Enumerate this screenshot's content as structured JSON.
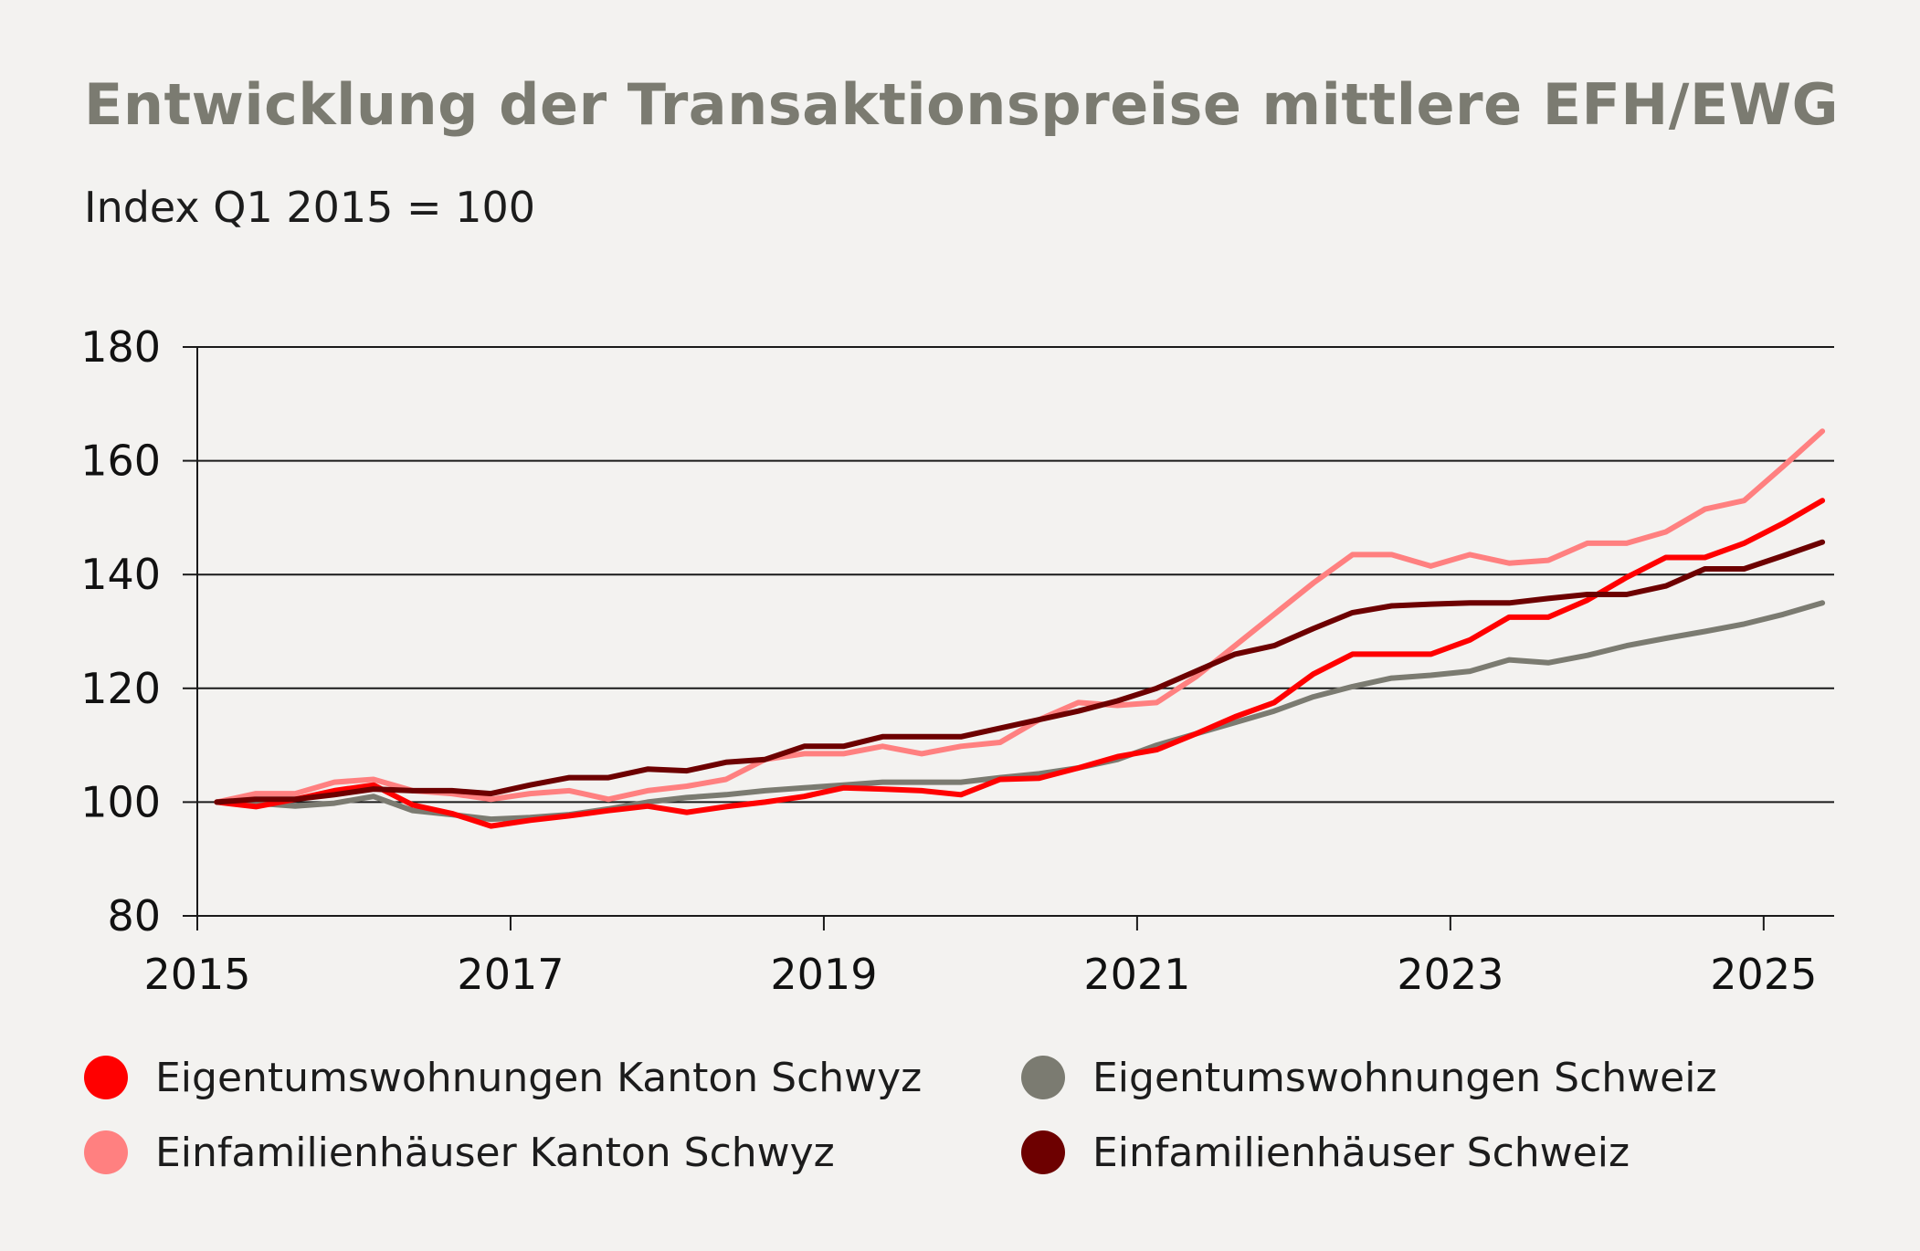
{
  "chart_data": {
    "type": "line",
    "title": "Entwicklung der Transaktionspreise mittlere EFH/EWG",
    "subtitle": "Index Q1 2015 = 100",
    "xlabel": "",
    "ylabel": "",
    "xlim": [
      2015.0,
      2025.45
    ],
    "ylim": [
      80,
      180
    ],
    "yticks": [
      "80",
      "100",
      "120",
      "140",
      "160",
      "180"
    ],
    "xticks": [
      "2015",
      "2017",
      "2019",
      "2021",
      "2023",
      "2025"
    ],
    "grid": "horizontal",
    "legend_position": "bottom",
    "x": [
      2015.125,
      2015.375,
      2015.625,
      2015.875,
      2016.125,
      2016.375,
      2016.625,
      2016.875,
      2017.125,
      2017.375,
      2017.625,
      2017.875,
      2018.125,
      2018.375,
      2018.625,
      2018.875,
      2019.125,
      2019.375,
      2019.625,
      2019.875,
      2020.125,
      2020.375,
      2020.625,
      2020.875,
      2021.125,
      2021.375,
      2021.625,
      2021.875,
      2022.125,
      2022.375,
      2022.625,
      2022.875,
      2023.125,
      2023.375,
      2023.625,
      2023.875,
      2024.125,
      2024.375,
      2024.625,
      2024.875,
      2025.125,
      2025.375
    ],
    "series": [
      {
        "name": "Eigentumswohnungen Kanton Schwyz",
        "color": "#ff0000",
        "values": [
          100,
          99.2,
          100.5,
          102,
          103,
          99.5,
          98,
          95.8,
          96.8,
          97.6,
          98.5,
          99.3,
          98.2,
          99.2,
          100,
          101,
          102.5,
          102.3,
          102,
          101.3,
          104,
          104.2,
          106,
          108,
          109.2,
          112,
          115,
          117.5,
          122.5,
          126,
          126,
          126,
          128.5,
          132.5,
          132.5,
          135.5,
          139.5,
          143,
          143,
          145.5,
          149,
          153
        ]
      },
      {
        "name": "Eigentumswohnungen Schweiz",
        "color": "#7b7b71",
        "values": [
          100,
          99.8,
          99.3,
          99.8,
          101,
          98.5,
          97.8,
          97,
          97.3,
          97.8,
          98.8,
          100,
          100.8,
          101.3,
          102,
          102.5,
          103,
          103.5,
          103.5,
          103.5,
          104.3,
          105,
          106,
          107.5,
          110,
          112,
          114,
          116,
          118.5,
          120.3,
          121.8,
          122.3,
          123,
          125,
          124.5,
          125.8,
          127.5,
          128.8,
          130,
          131.3,
          133,
          135
        ]
      },
      {
        "name": "Einfamilienhäuser Kanton Schwyz",
        "color": "#ff8080",
        "values": [
          100,
          101.5,
          101.5,
          103.5,
          104,
          102,
          101.5,
          100.5,
          101.5,
          102,
          100.5,
          102,
          102.8,
          104,
          107.5,
          108.5,
          108.5,
          109.8,
          108.5,
          109.8,
          110.5,
          114.5,
          117.5,
          117,
          117.5,
          122,
          127.5,
          133,
          138.5,
          143.5,
          143.5,
          141.5,
          143.5,
          142,
          142.5,
          145.5,
          145.5,
          147.5,
          151.5,
          153,
          159,
          165.2
        ]
      },
      {
        "name": "Einfamilienhäuser Schweiz",
        "color": "#6d0000",
        "values": [
          100,
          100.5,
          100.5,
          101.3,
          102.3,
          102,
          102,
          101.5,
          103,
          104.3,
          104.3,
          105.8,
          105.5,
          107,
          107.5,
          109.8,
          109.8,
          111.5,
          111.5,
          111.5,
          113,
          114.5,
          116,
          117.8,
          120,
          123,
          126,
          127.5,
          130.5,
          133.3,
          134.5,
          134.8,
          135,
          135,
          135.8,
          136.5,
          136.5,
          138,
          141,
          141,
          143.3,
          145.7
        ]
      }
    ]
  },
  "legend": {
    "items": [
      {
        "label": "Eigentumswohnungen Kanton Schwyz",
        "color": "#ff0000"
      },
      {
        "label": "Eigentumswohnungen Schweiz",
        "color": "#7b7b71"
      },
      {
        "label": "Einfamilienhäuser Kanton Schwyz",
        "color": "#ff8080"
      },
      {
        "label": "Einfamilienhäuser Schweiz",
        "color": "#6d0000"
      }
    ]
  }
}
